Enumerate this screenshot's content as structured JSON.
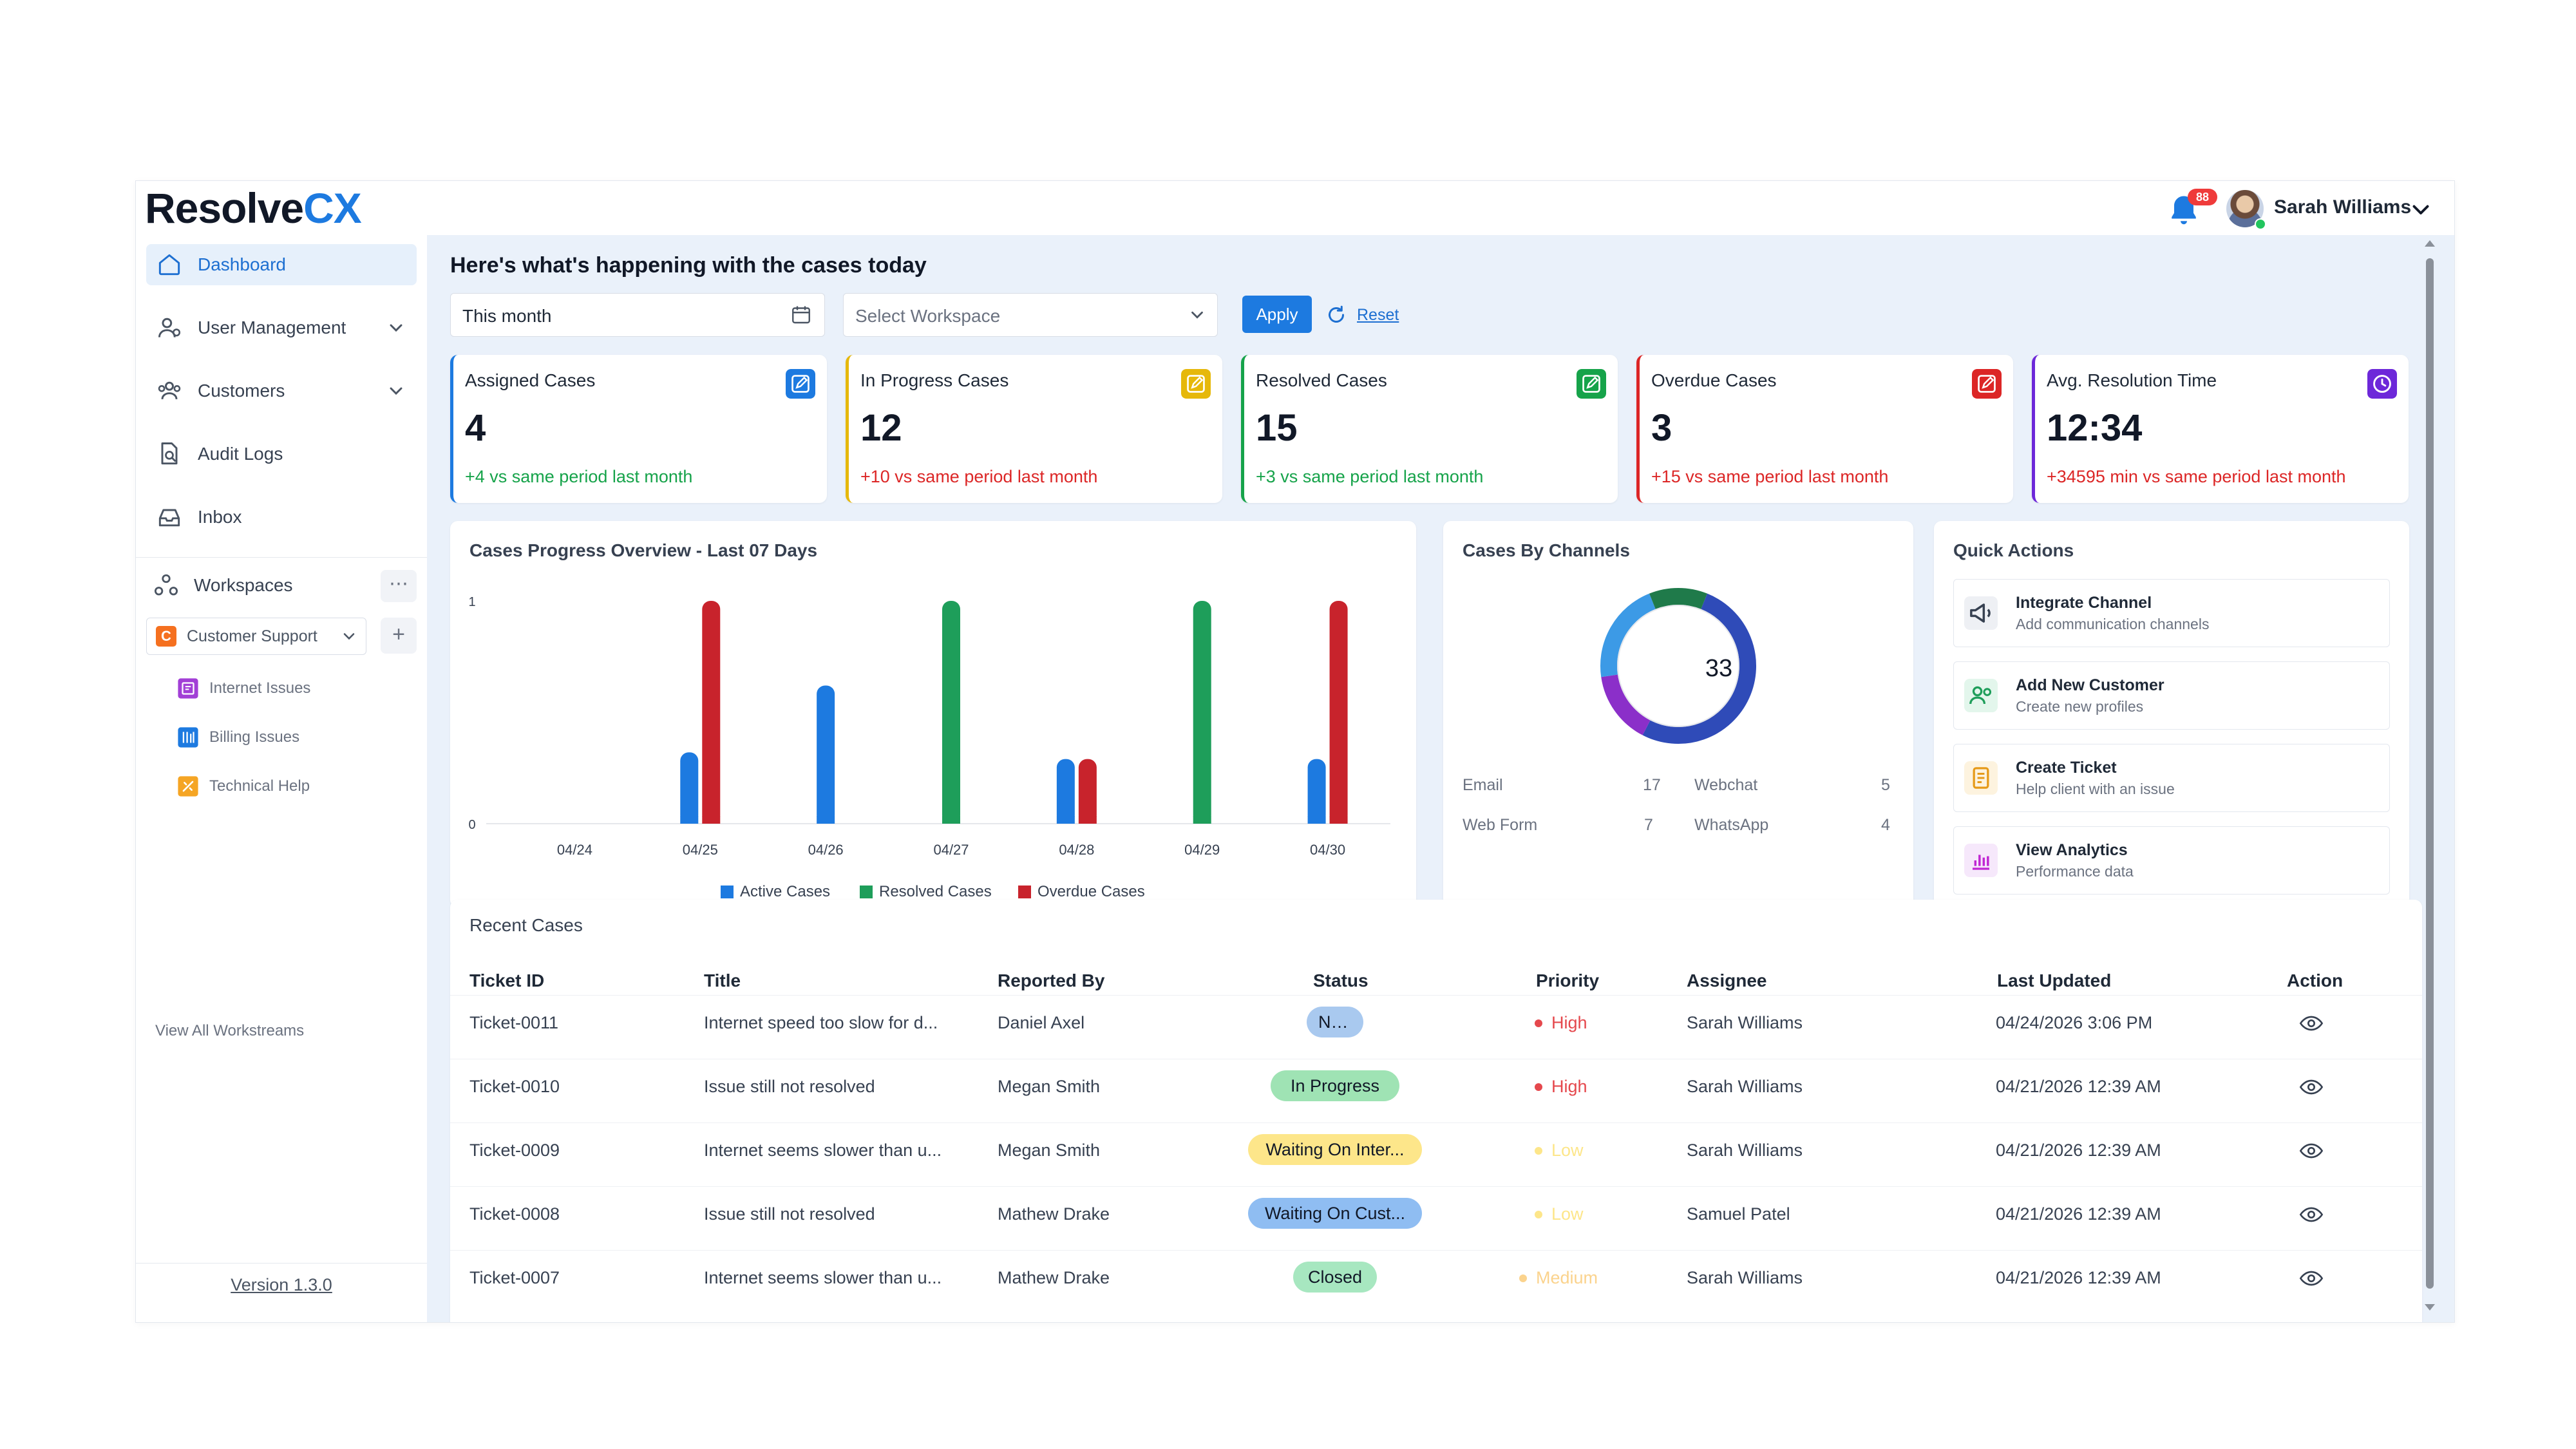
{
  "app": {
    "logo_part1": "Resolve",
    "logo_part2": "CX",
    "notification_count": "88",
    "user_name": "Sarah Williams"
  },
  "sidebar": {
    "items": [
      {
        "label": "Dashboard",
        "icon": "home-icon",
        "active": true
      },
      {
        "label": "User Management",
        "icon": "user-management-icon",
        "expandable": true
      },
      {
        "label": "Customers",
        "icon": "customers-icon",
        "expandable": true
      },
      {
        "label": "Audit Logs",
        "icon": "audit-logs-icon"
      },
      {
        "label": "Inbox",
        "icon": "inbox-icon"
      }
    ],
    "workspaces_label": "Workspaces",
    "workspace_selected": "Customer Support",
    "workspace_letter": "C",
    "streams": [
      {
        "label": "Internet Issues",
        "color": "#a23fd6"
      },
      {
        "label": "Billing Issues",
        "color": "#1d7ae0"
      },
      {
        "label": "Technical Help",
        "color": "#f5a524"
      }
    ],
    "view_all": "View All Workstreams",
    "version": "Version 1.3.0"
  },
  "main": {
    "headline": "Here's what's happening with the cases today",
    "date_value": "This month",
    "workspace_placeholder": "Select Workspace",
    "apply_label": "Apply",
    "reset_label": "Reset"
  },
  "stats": [
    {
      "title": "Assigned Cases",
      "value": "4",
      "delta": "+4 vs same period last month",
      "color": "#1d7ae0",
      "delta_color": "#16a34a"
    },
    {
      "title": "In Progress Cases",
      "value": "12",
      "delta": "+10 vs same period last month",
      "color": "#e6b80b",
      "delta_color": "#dc2626"
    },
    {
      "title": "Resolved Cases",
      "value": "15",
      "delta": "+3 vs same period last month",
      "color": "#16a34a",
      "delta_color": "#16a34a"
    },
    {
      "title": "Overdue Cases",
      "value": "3",
      "delta": "+15 vs same period last month",
      "color": "#dc2626",
      "delta_color": "#dc2626"
    },
    {
      "title": "Avg. Resolution Time",
      "value": "12:34",
      "delta": "+34595 min vs same period last month",
      "color": "#6d28d9",
      "delta_color": "#dc2626"
    }
  ],
  "chart_data": [
    {
      "type": "bar",
      "title": "Cases Progress Overview - Last 07 Days",
      "categories": [
        "04/24",
        "04/25",
        "04/26",
        "04/27",
        "04/28",
        "04/29",
        "04/30"
      ],
      "ylim": [
        0,
        1
      ],
      "yticks": [
        "0",
        "1"
      ],
      "series": [
        {
          "name": "Active Cases",
          "color": "#1d7ae0",
          "values": [
            0,
            0.32,
            0.62,
            0,
            0.29,
            0,
            0.29
          ]
        },
        {
          "name": "Resolved Cases",
          "color": "#1e9e5a",
          "values": [
            0,
            0,
            0,
            1,
            0,
            1,
            0
          ]
        },
        {
          "name": "Overdue Cases",
          "color": "#c8232c",
          "values": [
            0,
            1,
            0,
            0,
            0.29,
            0,
            1
          ]
        }
      ],
      "legend": "bottom"
    },
    {
      "type": "pie",
      "title": "Cases By Channels",
      "total": "33",
      "slices": [
        {
          "name": "Email",
          "value": 17,
          "color": "#2f4bb8"
        },
        {
          "name": "Webchat",
          "value": 5,
          "color": "#8b2fc9"
        },
        {
          "name": "Web Form",
          "value": 7,
          "color": "#3c9ae6"
        },
        {
          "name": "WhatsApp",
          "value": 4,
          "color": "#1f7a4a"
        }
      ]
    }
  ],
  "quick_actions": {
    "title": "Quick Actions",
    "items": [
      {
        "title": "Integrate Channel",
        "subtitle": "Add communication channels",
        "icon": "megaphone-icon",
        "bg": "#eef0f4"
      },
      {
        "title": "Add New Customer",
        "subtitle": "Create new profiles",
        "icon": "add-customer-icon",
        "bg": "#e3f6ec"
      },
      {
        "title": "Create Ticket",
        "subtitle": "Help client with an issue",
        "icon": "ticket-icon",
        "bg": "#fdf3df"
      },
      {
        "title": "View Analytics",
        "subtitle": "Performance data",
        "icon": "analytics-icon",
        "bg": "#f6e8fb"
      }
    ]
  },
  "recent_cases": {
    "title": "Recent Cases",
    "columns": [
      "Ticket ID",
      "Title",
      "Reported By",
      "Status",
      "Priority",
      "Assignee",
      "Last Updated",
      "Action"
    ],
    "rows": [
      {
        "id": "Ticket-0011",
        "title": "Internet speed too slow for d...",
        "reported_by": "Daniel Axel",
        "status": "New",
        "status_color": "#a9c9ef",
        "priority": "High",
        "priority_color": "#e5484d",
        "assignee": "Sarah Williams",
        "updated": "04/24/2026 3:06 PM"
      },
      {
        "id": "Ticket-0010",
        "title": "Issue still not resolved",
        "reported_by": "Megan Smith",
        "status": "In Progress",
        "status_color": "#9fe3b4",
        "priority": "High",
        "priority_color": "#e5484d",
        "assignee": "Sarah Williams",
        "updated": "04/21/2026 12:39 AM"
      },
      {
        "id": "Ticket-0009",
        "title": "Internet seems slower than u...",
        "reported_by": "Megan Smith",
        "status": "Waiting On Inter...",
        "status_color": "#fde68a",
        "priority": "Low",
        "priority_color": "#fde68a",
        "assignee": "Sarah Williams",
        "updated": "04/21/2026 12:39 AM"
      },
      {
        "id": "Ticket-0008",
        "title": "Issue still not resolved",
        "reported_by": "Mathew Drake",
        "status": "Waiting On Cust...",
        "status_color": "#8fbdf2",
        "priority": "Low",
        "priority_color": "#fde68a",
        "assignee": "Samuel Patel",
        "updated": "04/21/2026 12:39 AM"
      },
      {
        "id": "Ticket-0007",
        "title": "Internet seems slower than u...",
        "reported_by": "Mathew Drake",
        "status": "Closed",
        "status_color": "#a7e7c0",
        "priority": "Medium",
        "priority_color": "#fbd38d",
        "assignee": "Sarah Williams",
        "updated": "04/21/2026 12:39 AM"
      }
    ]
  }
}
